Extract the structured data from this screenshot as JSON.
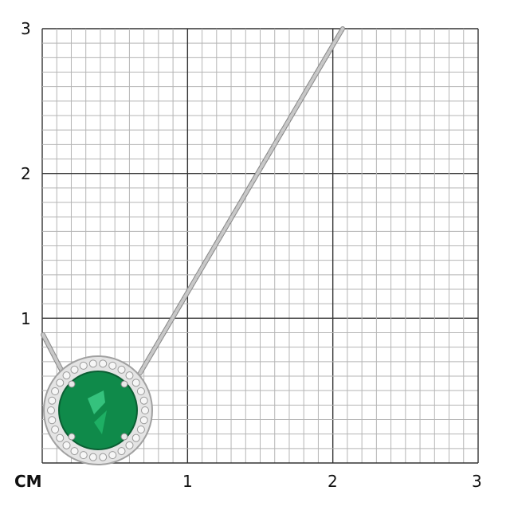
{
  "scale": {
    "unit": "CM",
    "x_ticks": [
      "1",
      "2",
      "3"
    ],
    "y_ticks": [
      "1",
      "2",
      "3"
    ],
    "grid_divisions_per_unit": 10
  },
  "product": {
    "gem_color": "#0f8a4a",
    "metal_color": "#c8c8c8",
    "halo_color": "#e4e4e4"
  }
}
